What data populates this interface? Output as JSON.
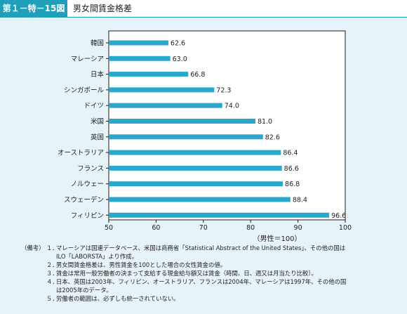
{
  "header": {
    "figure_label": "第１－特－15図",
    "figure_title": "男女間賃金格差"
  },
  "colors": {
    "accent": "#1f9fb9",
    "bar": "#2aa8cc",
    "plot_bg": "#ffffff",
    "page_bg": "#e6f3f8"
  },
  "chart_data": {
    "type": "bar",
    "orientation": "horizontal",
    "categories": [
      "韓国",
      "マレーシア",
      "日本",
      "シンガポール",
      "ドイツ",
      "米国",
      "英国",
      "オーストラリア",
      "フランス",
      "ノルウェー",
      "スウェーデン",
      "フィリピン"
    ],
    "values": [
      62.6,
      63.0,
      66.8,
      72.3,
      74.0,
      81.0,
      82.6,
      86.4,
      86.6,
      86.8,
      88.4,
      96.6
    ],
    "value_labels": [
      "62.6",
      "63.0",
      "66.8",
      "72.3",
      "74.0",
      "81.0",
      "82.6",
      "86.4",
      "86.6",
      "86.8",
      "88.4",
      "96.6"
    ],
    "xlim": [
      50,
      100
    ],
    "xticks": [
      "50",
      "60",
      "70",
      "80",
      "90",
      "100"
    ],
    "xlabel": "（男性＝100）",
    "grid": false,
    "legend": "none"
  },
  "notes": {
    "head": "（備考）",
    "items": [
      {
        "num": "１．",
        "lines": [
          "マレーシアは国連データベース、米国は商務省「Statistical Abstract of the United States」、その他の国は",
          "ILO「LABORSTA」より作成。"
        ]
      },
      {
        "num": "２．",
        "lines": [
          "男女間賃金格差は、男性賃金を100とした場合の女性賃金の値。"
        ]
      },
      {
        "num": "３．",
        "lines": [
          "賃金は常用一般労働者の決まって支給する現金給与額又は賃金（時間、日、週又は月当たり比較）。"
        ]
      },
      {
        "num": "４．",
        "lines": [
          "日本、英国は2003年、フィリピン、オーストラリア、フランスは2004年、マレーシアは1997年、その他の国",
          "は2005年のデータ。"
        ]
      },
      {
        "num": "５．",
        "lines": [
          "労働者の範囲は、必ずしも統一されていない。"
        ]
      }
    ]
  }
}
